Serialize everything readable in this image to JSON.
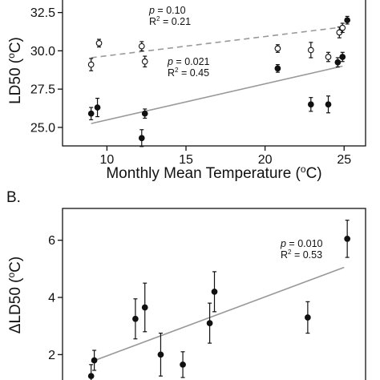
{
  "chart_data": [
    {
      "type": "scatter",
      "panel_label": "",
      "xlabel_text": "Monthly Mean Temperature (",
      "xlabel_sup": "o",
      "xlabel_tail": "C)",
      "ylabel_text": "LD50 (",
      "ylabel_sup": "o",
      "ylabel_tail": "C)",
      "xlim": [
        7.8,
        25.8
      ],
      "ylim": [
        24.0,
        32.9
      ],
      "xticks": [
        10,
        15,
        20,
        25
      ],
      "xtick_labels": [
        "10",
        "15",
        "20",
        "25"
      ],
      "yticks": [
        25.0,
        27.5,
        30.0,
        32.5
      ],
      "ytick_labels": [
        "25.0",
        "27.5",
        "30.0",
        "32.5"
      ],
      "grid": false,
      "series": [
        {
          "marker": "open-circle",
          "color": "#111111",
          "points": [
            {
              "x": 9.0,
              "y": 29.1,
              "err": 0.4
            },
            {
              "x": 9.5,
              "y": 30.5,
              "err": 0.25
            },
            {
              "x": 12.2,
              "y": 30.3,
              "err": 0.3
            },
            {
              "x": 12.4,
              "y": 29.3,
              "err": 0.35
            },
            {
              "x": 20.8,
              "y": 30.15,
              "err": 0.25
            },
            {
              "x": 22.9,
              "y": 30.05,
              "err": 0.5
            },
            {
              "x": 24.0,
              "y": 29.6,
              "err": 0.3
            },
            {
              "x": 24.7,
              "y": 31.2,
              "err": 0.35
            },
            {
              "x": 24.9,
              "y": 31.5,
              "err": 0.3
            }
          ],
          "fit": {
            "x": [
              9.0,
              24.9
            ],
            "y": [
              29.55,
              31.55
            ],
            "style": "dashed",
            "color": "#999999"
          },
          "annotation": {
            "p_label": "p",
            "p_text": " = 0.10",
            "r2_text": "R",
            "r2_sup": "2",
            "r2_tail": " = 0.21"
          }
        },
        {
          "marker": "filled-circle",
          "color": "#111111",
          "points": [
            {
              "x": 9.0,
              "y": 25.9,
              "err": 0.4
            },
            {
              "x": 9.4,
              "y": 26.3,
              "err": 0.6
            },
            {
              "x": 12.2,
              "y": 24.3,
              "err": 0.55
            },
            {
              "x": 12.4,
              "y": 25.9,
              "err": 0.3
            },
            {
              "x": 20.8,
              "y": 28.85,
              "err": 0.25
            },
            {
              "x": 22.9,
              "y": 26.5,
              "err": 0.45
            },
            {
              "x": 24.0,
              "y": 26.5,
              "err": 0.55
            },
            {
              "x": 24.6,
              "y": 29.25,
              "err": 0.3
            },
            {
              "x": 24.9,
              "y": 29.6,
              "err": 0.3
            },
            {
              "x": 25.2,
              "y": 32.0,
              "err": 0.25
            }
          ],
          "fit": {
            "x": [
              9.0,
              24.9
            ],
            "y": [
              25.25,
              29.0
            ],
            "style": "solid",
            "color": "#999999"
          },
          "annotation": {
            "p_label": "p",
            "p_text": " = 0.021",
            "r2_text": "R",
            "r2_sup": "2",
            "r2_tail": " = 0.45"
          }
        }
      ]
    },
    {
      "type": "scatter",
      "panel_label": "B.",
      "xlabel_text": "",
      "ylabel_delta": "Δ",
      "ylabel_text": "LD50 (",
      "ylabel_sup": "o",
      "ylabel_tail": "C)",
      "xlim": [
        7.8,
        25.8
      ],
      "ylim": [
        1.0,
        7.0
      ],
      "yticks": [
        2,
        4,
        6
      ],
      "ytick_labels": [
        "2",
        "4",
        "6"
      ],
      "grid": false,
      "series": [
        {
          "marker": "filled-circle",
          "color": "#111111",
          "points": [
            {
              "x": 9.0,
              "y": 1.25,
              "err": 0.4
            },
            {
              "x": 9.2,
              "y": 1.8,
              "err": 0.35
            },
            {
              "x": 11.8,
              "y": 3.25,
              "err": 0.7
            },
            {
              "x": 12.4,
              "y": 3.65,
              "err": 0.85
            },
            {
              "x": 13.4,
              "y": 2.0,
              "err": 0.75
            },
            {
              "x": 14.8,
              "y": 1.65,
              "err": 0.45
            },
            {
              "x": 16.5,
              "y": 3.1,
              "err": 0.7
            },
            {
              "x": 16.8,
              "y": 4.2,
              "err": 0.7
            },
            {
              "x": 22.7,
              "y": 3.3,
              "err": 0.55
            },
            {
              "x": 25.2,
              "y": 6.05,
              "err": 0.65
            }
          ],
          "fit": {
            "x": [
              9.0,
              25.0
            ],
            "y": [
              1.75,
              5.05
            ],
            "style": "solid",
            "color": "#999999"
          },
          "annotation": {
            "p_label": "p",
            "p_text": " = 0.010",
            "r2_text": "R",
            "r2_sup": "2",
            "r2_tail": " = 0.53"
          }
        }
      ]
    }
  ]
}
